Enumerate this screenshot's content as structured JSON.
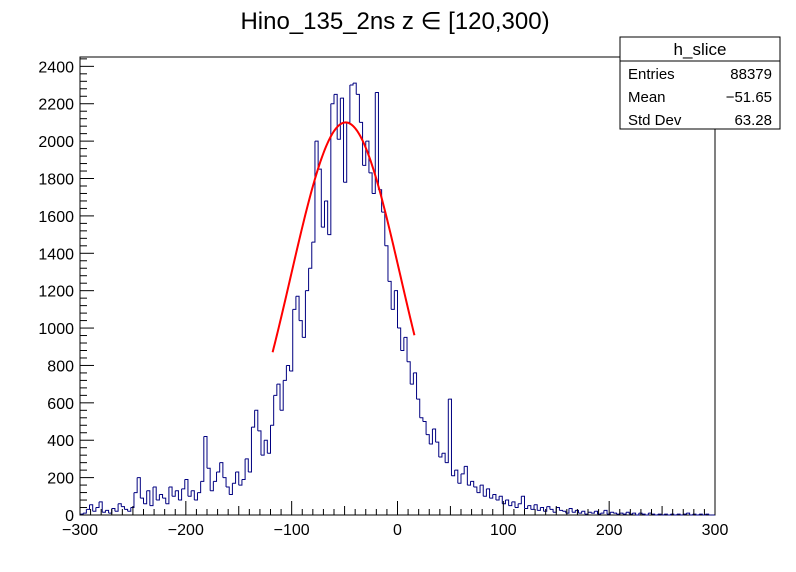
{
  "chart_data": {
    "type": "histogram",
    "title": "Hino_135_2ns z  ∈ [120,300)",
    "xlabel": "",
    "ylabel": "",
    "xlim": [
      -300,
      300
    ],
    "ylim": [
      0,
      2450
    ],
    "x_ticks": [
      -300,
      -200,
      -100,
      0,
      100,
      200,
      300
    ],
    "y_ticks": [
      0,
      200,
      400,
      600,
      800,
      1000,
      1200,
      1400,
      1600,
      1800,
      2000,
      2200,
      2400
    ],
    "x_tick_labels": [
      "−300",
      "−200",
      "−100",
      "0",
      "100",
      "200",
      "300"
    ],
    "y_tick_labels": [
      "0",
      "200",
      "400",
      "600",
      "800",
      "1000",
      "1200",
      "1400",
      "1600",
      "1800",
      "2000",
      "2200",
      "2400"
    ],
    "bin_width": 3,
    "histogram_color": "#000080",
    "fit_color": "#ff0000",
    "bins": [
      {
        "x": -300,
        "y": 5
      },
      {
        "x": -297,
        "y": 10
      },
      {
        "x": -294,
        "y": 30
      },
      {
        "x": -291,
        "y": 55
      },
      {
        "x": -288,
        "y": 20
      },
      {
        "x": -285,
        "y": 40
      },
      {
        "x": -282,
        "y": 70
      },
      {
        "x": -279,
        "y": 15
      },
      {
        "x": -276,
        "y": 25
      },
      {
        "x": -273,
        "y": 10
      },
      {
        "x": -270,
        "y": 35
      },
      {
        "x": -267,
        "y": 20
      },
      {
        "x": -264,
        "y": 60
      },
      {
        "x": -261,
        "y": 45
      },
      {
        "x": -258,
        "y": 30
      },
      {
        "x": -255,
        "y": 20
      },
      {
        "x": -252,
        "y": 40
      },
      {
        "x": -249,
        "y": 120
      },
      {
        "x": -246,
        "y": 200
      },
      {
        "x": -243,
        "y": 90
      },
      {
        "x": -240,
        "y": 60
      },
      {
        "x": -237,
        "y": 130
      },
      {
        "x": -234,
        "y": 50
      },
      {
        "x": -231,
        "y": 150
      },
      {
        "x": -228,
        "y": 80
      },
      {
        "x": -225,
        "y": 110
      },
      {
        "x": -222,
        "y": 90
      },
      {
        "x": -219,
        "y": 60
      },
      {
        "x": -216,
        "y": 150
      },
      {
        "x": -213,
        "y": 100
      },
      {
        "x": -210,
        "y": 130
      },
      {
        "x": -207,
        "y": 80
      },
      {
        "x": -204,
        "y": 140
      },
      {
        "x": -201,
        "y": 190
      },
      {
        "x": -198,
        "y": 100
      },
      {
        "x": -195,
        "y": 130
      },
      {
        "x": -192,
        "y": 80
      },
      {
        "x": -189,
        "y": 120
      },
      {
        "x": -186,
        "y": 180
      },
      {
        "x": -183,
        "y": 420
      },
      {
        "x": -180,
        "y": 250
      },
      {
        "x": -177,
        "y": 130
      },
      {
        "x": -174,
        "y": 180
      },
      {
        "x": -171,
        "y": 230
      },
      {
        "x": -168,
        "y": 280
      },
      {
        "x": -165,
        "y": 200
      },
      {
        "x": -162,
        "y": 150
      },
      {
        "x": -159,
        "y": 110
      },
      {
        "x": -156,
        "y": 170
      },
      {
        "x": -153,
        "y": 230
      },
      {
        "x": -150,
        "y": 160
      },
      {
        "x": -147,
        "y": 190
      },
      {
        "x": -144,
        "y": 300
      },
      {
        "x": -141,
        "y": 230
      },
      {
        "x": -138,
        "y": 470
      },
      {
        "x": -135,
        "y": 560
      },
      {
        "x": -132,
        "y": 450
      },
      {
        "x": -129,
        "y": 320
      },
      {
        "x": -126,
        "y": 400
      },
      {
        "x": -123,
        "y": 330
      },
      {
        "x": -120,
        "y": 480
      },
      {
        "x": -117,
        "y": 640
      },
      {
        "x": -114,
        "y": 700
      },
      {
        "x": -111,
        "y": 560
      },
      {
        "x": -108,
        "y": 720
      },
      {
        "x": -105,
        "y": 800
      },
      {
        "x": -102,
        "y": 770
      },
      {
        "x": -99,
        "y": 1100
      },
      {
        "x": -96,
        "y": 1170
      },
      {
        "x": -93,
        "y": 1040
      },
      {
        "x": -90,
        "y": 950
      },
      {
        "x": -87,
        "y": 1200
      },
      {
        "x": -84,
        "y": 1320
      },
      {
        "x": -81,
        "y": 1460
      },
      {
        "x": -78,
        "y": 2000
      },
      {
        "x": -75,
        "y": 1850
      },
      {
        "x": -72,
        "y": 1540
      },
      {
        "x": -69,
        "y": 1680
      },
      {
        "x": -66,
        "y": 1500
      },
      {
        "x": -63,
        "y": 2200
      },
      {
        "x": -60,
        "y": 2250
      },
      {
        "x": -57,
        "y": 2010
      },
      {
        "x": -54,
        "y": 2230
      },
      {
        "x": -51,
        "y": 1780
      },
      {
        "x": -48,
        "y": 2100
      },
      {
        "x": -45,
        "y": 2300
      },
      {
        "x": -42,
        "y": 2310
      },
      {
        "x": -39,
        "y": 2250
      },
      {
        "x": -36,
        "y": 2100
      },
      {
        "x": -33,
        "y": 1870
      },
      {
        "x": -30,
        "y": 2000
      },
      {
        "x": -27,
        "y": 1830
      },
      {
        "x": -24,
        "y": 1720
      },
      {
        "x": -21,
        "y": 2260
      },
      {
        "x": -18,
        "y": 1740
      },
      {
        "x": -15,
        "y": 1620
      },
      {
        "x": -12,
        "y": 1440
      },
      {
        "x": -9,
        "y": 1250
      },
      {
        "x": -6,
        "y": 1100
      },
      {
        "x": -3,
        "y": 1200
      },
      {
        "x": 0,
        "y": 1000
      },
      {
        "x": 3,
        "y": 880
      },
      {
        "x": 6,
        "y": 950
      },
      {
        "x": 9,
        "y": 820
      },
      {
        "x": 12,
        "y": 700
      },
      {
        "x": 15,
        "y": 760
      },
      {
        "x": 18,
        "y": 620
      },
      {
        "x": 21,
        "y": 520
      },
      {
        "x": 24,
        "y": 500
      },
      {
        "x": 27,
        "y": 430
      },
      {
        "x": 30,
        "y": 380
      },
      {
        "x": 33,
        "y": 460
      },
      {
        "x": 36,
        "y": 390
      },
      {
        "x": 39,
        "y": 310
      },
      {
        "x": 42,
        "y": 330
      },
      {
        "x": 45,
        "y": 280
      },
      {
        "x": 48,
        "y": 620
      },
      {
        "x": 51,
        "y": 210
      },
      {
        "x": 54,
        "y": 240
      },
      {
        "x": 57,
        "y": 170
      },
      {
        "x": 60,
        "y": 220
      },
      {
        "x": 63,
        "y": 260
      },
      {
        "x": 66,
        "y": 160
      },
      {
        "x": 69,
        "y": 180
      },
      {
        "x": 72,
        "y": 150
      },
      {
        "x": 75,
        "y": 120
      },
      {
        "x": 78,
        "y": 160
      },
      {
        "x": 81,
        "y": 100
      },
      {
        "x": 84,
        "y": 140
      },
      {
        "x": 87,
        "y": 90
      },
      {
        "x": 90,
        "y": 110
      },
      {
        "x": 93,
        "y": 80
      },
      {
        "x": 96,
        "y": 100
      },
      {
        "x": 99,
        "y": 60
      },
      {
        "x": 102,
        "y": 80
      },
      {
        "x": 105,
        "y": 50
      },
      {
        "x": 108,
        "y": 70
      },
      {
        "x": 111,
        "y": 40
      },
      {
        "x": 114,
        "y": 60
      },
      {
        "x": 117,
        "y": 100
      },
      {
        "x": 120,
        "y": 35
      },
      {
        "x": 123,
        "y": 50
      },
      {
        "x": 126,
        "y": 30
      },
      {
        "x": 129,
        "y": 55
      },
      {
        "x": 132,
        "y": 25
      },
      {
        "x": 135,
        "y": 40
      },
      {
        "x": 138,
        "y": 20
      },
      {
        "x": 141,
        "y": 45
      },
      {
        "x": 144,
        "y": 30
      },
      {
        "x": 147,
        "y": 15
      },
      {
        "x": 150,
        "y": 40
      },
      {
        "x": 153,
        "y": 25
      },
      {
        "x": 156,
        "y": 20
      },
      {
        "x": 159,
        "y": 10
      },
      {
        "x": 162,
        "y": 35
      },
      {
        "x": 165,
        "y": 15
      },
      {
        "x": 168,
        "y": 25
      },
      {
        "x": 171,
        "y": 10
      },
      {
        "x": 174,
        "y": 20
      },
      {
        "x": 177,
        "y": 5
      },
      {
        "x": 180,
        "y": 15
      },
      {
        "x": 183,
        "y": 10
      },
      {
        "x": 186,
        "y": 20
      },
      {
        "x": 189,
        "y": 5
      },
      {
        "x": 192,
        "y": 10
      },
      {
        "x": 195,
        "y": 25
      },
      {
        "x": 198,
        "y": 5
      },
      {
        "x": 201,
        "y": 15
      },
      {
        "x": 204,
        "y": 10
      },
      {
        "x": 207,
        "y": 5
      },
      {
        "x": 210,
        "y": 10
      },
      {
        "x": 213,
        "y": 5
      },
      {
        "x": 216,
        "y": 15
      },
      {
        "x": 219,
        "y": 5
      },
      {
        "x": 222,
        "y": 10
      },
      {
        "x": 225,
        "y": 0
      },
      {
        "x": 228,
        "y": 10
      },
      {
        "x": 231,
        "y": 5
      },
      {
        "x": 234,
        "y": 0
      },
      {
        "x": 237,
        "y": 10
      },
      {
        "x": 240,
        "y": 5
      },
      {
        "x": 243,
        "y": 0
      },
      {
        "x": 246,
        "y": 5
      },
      {
        "x": 249,
        "y": 0
      },
      {
        "x": 252,
        "y": 5
      },
      {
        "x": 255,
        "y": 0
      },
      {
        "x": 258,
        "y": 5
      },
      {
        "x": 261,
        "y": 0
      },
      {
        "x": 264,
        "y": 5
      },
      {
        "x": 267,
        "y": 0
      },
      {
        "x": 270,
        "y": 5
      },
      {
        "x": 273,
        "y": 10
      },
      {
        "x": 276,
        "y": 0
      },
      {
        "x": 279,
        "y": 5
      },
      {
        "x": 282,
        "y": 0
      },
      {
        "x": 285,
        "y": 5
      },
      {
        "x": 288,
        "y": 0
      },
      {
        "x": 291,
        "y": 5
      },
      {
        "x": 294,
        "y": 0
      },
      {
        "x": 297,
        "y": 0
      }
    ],
    "fit": {
      "name": "gaus",
      "amplitude": 2100,
      "mean": -49,
      "sigma": 52,
      "x_range": [
        -118,
        16
      ]
    },
    "stats": {
      "title": "h_slice",
      "rows": [
        {
          "label": "Entries",
          "value": "88379"
        },
        {
          "label": "Mean",
          "value": "−51.65"
        },
        {
          "label": "Std Dev",
          "value": "63.28"
        }
      ]
    }
  }
}
